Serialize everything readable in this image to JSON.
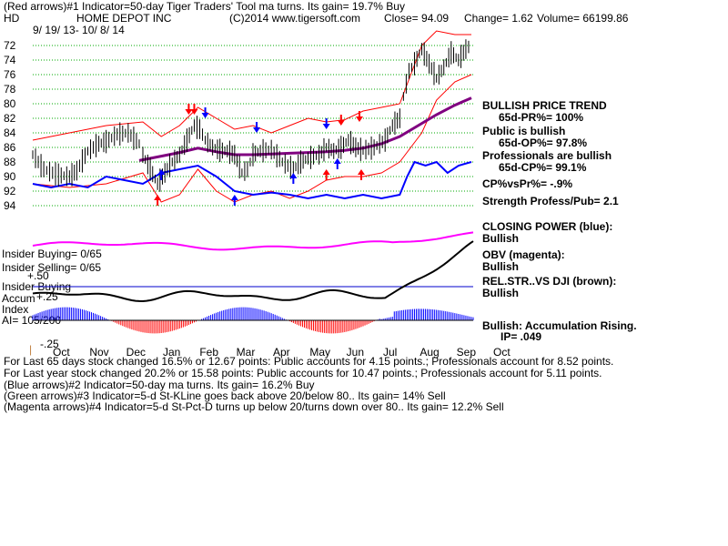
{
  "header": {
    "line1": "(Red arrows)#1 Indicator=50-day Tiger Traders' Tool ma turns. Its gain= 19.7% Buy",
    "ticker": "HD",
    "company": "HOME DEPOT INC",
    "copyright": "(C)2014 www.tigersoft.com",
    "close_text": "Close=  94.09",
    "change_text": "Change= 1.62",
    "volume_text": "Volume= 66199.86",
    "date_range": "9/ 19/ 13-  10/ 8/ 14"
  },
  "right_panel": {
    "trend_title": "BULLISH PRICE TREND",
    "pr": "65d-PR%= 100%",
    "public": "Public is bullish",
    "op": "65d-OP%= 97.8%",
    "professionals": "Professionals are bullish",
    "cp": "65d-CP%= 99.1%",
    "cpvspr": "CP%vsPr%= -.9%",
    "strength": "Strength Profess/Pub= 2.1",
    "closing_power": "CLOSING POWER (blue):",
    "closing_power_state": "Bullish",
    "obv": "OBV (magenta):",
    "obv_state": "Bullish",
    "relstr": "REL.STR..VS DJI (brown):",
    "relstr_state": "Bullish",
    "accum": "Bullish: Accumulation Rising.",
    "ip": "IP=  .049"
  },
  "left_panel": {
    "insider_buying": "Insider Buying= 0/65",
    "insider_selling": "Insider Selling= 0/65",
    "plus50": "+.50",
    "insider_buying2": "Insider Buying",
    "accum": "Accum",
    "plus25": "+.25",
    "index": "Index",
    "ai": "AI= 105/200",
    "minus25": "-.25",
    "zero_tick": "|"
  },
  "footer": {
    "line1": "For Last 65 days stock changed  16.5% or  12.67 points:  Public accounts for  4.15 points.;  Professionals account for  8.52 points.",
    "line2": "For Last year stock changed  20.2% or  15.58 points:  Public accounts for  10.47 points.;  Professionals account for  5.11 points.",
    "line3": "(Blue arrows)#2 Indicator=50-day ma turns. Its gain= 16.2% Buy",
    "line4": "(Green arrows)#3 Indicator=5-d St-KLine goes back above 20/below 80.. Its gain= 14% Sell",
    "line5": "(Magenta arrows)#4 Indicator=5-d St-Pct-D turns up below 20/turns down over 80.. Its gain= 12.2% Sell"
  },
  "colors": {
    "price": "#000000",
    "band": "#ff0000",
    "ma": "#800080",
    "closing_power": "#0000ff",
    "obv": "#ff00ff",
    "rel_str": "#000000",
    "accum_pos": "#0000ff",
    "accum_neg": "#ff0000",
    "grid": "#00aa00",
    "arrow_red": "#ff0000",
    "arrow_blue": "#0000ff"
  },
  "chart_data": {
    "type": "line",
    "title": "HOME DEPOT INC",
    "x": [
      "Oct",
      "Nov",
      "Dec",
      "Jan",
      "Feb",
      "Mar",
      "Apr",
      "May",
      "Jun",
      "Jul",
      "Aug",
      "Sep",
      "Oct"
    ],
    "ylim": [
      70,
      96
    ],
    "yticks": [
      72,
      74,
      76,
      78,
      80,
      82,
      84,
      86,
      88,
      90,
      92,
      94
    ],
    "grid": true,
    "series": [
      {
        "name": "price",
        "points": [
          [
            0,
            79
          ],
          [
            0.3,
            77
          ],
          [
            0.7,
            76.2
          ],
          [
            1,
            76
          ],
          [
            1.2,
            76.8
          ],
          [
            1.5,
            79.5
          ],
          [
            1.8,
            80.5
          ],
          [
            2,
            80.8
          ],
          [
            2.3,
            81.8
          ],
          [
            2.6,
            82
          ],
          [
            2.9,
            80.5
          ],
          [
            3,
            79
          ],
          [
            3.2,
            77
          ],
          [
            3.4,
            75
          ],
          [
            3.6,
            76.5
          ],
          [
            3.8,
            78
          ],
          [
            4,
            79
          ],
          [
            4.2,
            81
          ],
          [
            4.4,
            83
          ],
          [
            4.55,
            82.5
          ],
          [
            4.7,
            81
          ],
          [
            4.9,
            80
          ],
          [
            5.1,
            79.6
          ],
          [
            5.3,
            79.5
          ],
          [
            5.5,
            79
          ],
          [
            5.7,
            76.5
          ],
          [
            5.85,
            77
          ],
          [
            6,
            79
          ],
          [
            6.2,
            79.5
          ],
          [
            6.5,
            79.7
          ],
          [
            6.8,
            78
          ],
          [
            7.1,
            77
          ],
          [
            7.3,
            78
          ],
          [
            7.5,
            78.5
          ],
          [
            7.8,
            79
          ],
          [
            8,
            80
          ],
          [
            8.2,
            79.5
          ],
          [
            8.4,
            80
          ],
          [
            8.6,
            81
          ],
          [
            8.8,
            80
          ],
          [
            9,
            79.6
          ],
          [
            9.3,
            80
          ],
          [
            9.6,
            81
          ],
          [
            9.8,
            83
          ],
          [
            10,
            84
          ],
          [
            10.1,
            87
          ],
          [
            10.25,
            90.5
          ],
          [
            10.4,
            91.5
          ],
          [
            10.6,
            93.5
          ],
          [
            10.8,
            91.5
          ],
          [
            11,
            89.5
          ],
          [
            11.2,
            91
          ],
          [
            11.4,
            93
          ],
          [
            11.6,
            92
          ],
          [
            11.8,
            93.5
          ],
          [
            11.95,
            94.1
          ]
        ]
      },
      {
        "name": "upper band",
        "points": [
          [
            0,
            81
          ],
          [
            1,
            82
          ],
          [
            2,
            83
          ],
          [
            3,
            83.5
          ],
          [
            3.5,
            81.5
          ],
          [
            4,
            83
          ],
          [
            4.5,
            85.5
          ],
          [
            5,
            84
          ],
          [
            5.5,
            82.5
          ],
          [
            6,
            83
          ],
          [
            6.5,
            82
          ],
          [
            7,
            83
          ],
          [
            7.5,
            84
          ],
          [
            8,
            83.5
          ],
          [
            8.5,
            83.8
          ],
          [
            9,
            85
          ],
          [
            9.5,
            85.5
          ],
          [
            10,
            86
          ],
          [
            10.3,
            90
          ],
          [
            10.6,
            94
          ],
          [
            11,
            96
          ],
          [
            11.5,
            95.5
          ],
          [
            11.95,
            95.5
          ]
        ]
      },
      {
        "name": "lower band",
        "points": [
          [
            0,
            75
          ],
          [
            1,
            74.5
          ],
          [
            2,
            75
          ],
          [
            3,
            76.5
          ],
          [
            3.5,
            72.5
          ],
          [
            4,
            73.5
          ],
          [
            4.5,
            77
          ],
          [
            5,
            74
          ],
          [
            5.5,
            72.5
          ],
          [
            6,
            73.5
          ],
          [
            6.5,
            74
          ],
          [
            7,
            73
          ],
          [
            7.5,
            74
          ],
          [
            8,
            75.5
          ],
          [
            8.5,
            76
          ],
          [
            9,
            76
          ],
          [
            9.5,
            76.5
          ],
          [
            10,
            78
          ],
          [
            10.3,
            80
          ],
          [
            10.6,
            82
          ],
          [
            11,
            86.5
          ],
          [
            11.5,
            89
          ],
          [
            11.95,
            90
          ]
        ]
      },
      {
        "name": "ma",
        "points": [
          [
            2.9,
            78.2
          ],
          [
            3.5,
            78.8
          ],
          [
            4,
            79.3
          ],
          [
            4.5,
            79.9
          ],
          [
            5,
            79.4
          ],
          [
            5.5,
            79
          ],
          [
            6,
            79
          ],
          [
            6.5,
            79.1
          ],
          [
            7,
            79.2
          ],
          [
            7.5,
            79.3
          ],
          [
            8,
            79.4
          ],
          [
            8.5,
            79.6
          ],
          [
            9,
            79.9
          ],
          [
            9.5,
            80.5
          ],
          [
            10,
            81.5
          ],
          [
            10.5,
            83
          ],
          [
            11,
            84.5
          ],
          [
            11.5,
            85.8
          ],
          [
            11.95,
            86.8
          ]
        ]
      },
      {
        "name": "closing power",
        "points": [
          [
            0,
            75
          ],
          [
            0.5,
            74.5
          ],
          [
            1,
            75
          ],
          [
            1.5,
            74.5
          ],
          [
            2,
            76
          ],
          [
            2.5,
            75.5
          ],
          [
            3,
            75
          ],
          [
            3.5,
            76.5
          ],
          [
            4,
            77
          ],
          [
            4.5,
            77.5
          ],
          [
            5,
            76
          ],
          [
            5.5,
            74
          ],
          [
            6,
            73.5
          ],
          [
            6.5,
            73.8
          ],
          [
            7,
            73.5
          ],
          [
            7.5,
            73
          ],
          [
            8,
            73.5
          ],
          [
            8.5,
            73
          ],
          [
            9,
            73.5
          ],
          [
            9.5,
            73
          ],
          [
            10,
            73.5
          ],
          [
            10.2,
            76
          ],
          [
            10.4,
            78
          ],
          [
            10.7,
            77.5
          ],
          [
            11,
            78
          ],
          [
            11.3,
            76.5
          ],
          [
            11.6,
            77.5
          ],
          [
            11.95,
            78
          ]
        ]
      }
    ],
    "price_labels": [
      "94",
      "92",
      "90",
      "88",
      "86",
      "84",
      "82",
      "80",
      "78",
      "76",
      "74",
      "72"
    ],
    "annotations": [
      "Red arrows: indicator #1",
      "Blue arrows: indicator #2"
    ]
  }
}
